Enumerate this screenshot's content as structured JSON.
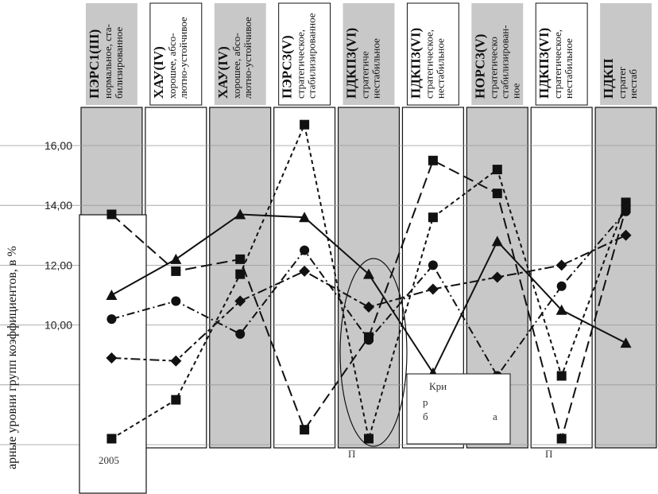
{
  "chart_data": {
    "type": "line",
    "title": "",
    "xlabel": "",
    "ylabel": "арные уровни групп коэффициентов, в %",
    "ylim": [
      6.0,
      17.0
    ],
    "yticks": [
      {
        "value": 16,
        "label": "16,00"
      },
      {
        "value": 14,
        "label": "14,00"
      },
      {
        "value": 12,
        "label": "12,00"
      },
      {
        "value": 10,
        "label": "10,00"
      }
    ],
    "categories": [
      {
        "code": "ПЭРС1(III)",
        "desc": [
          "нормальное, ста-",
          "билизированное"
        ],
        "shaded": true
      },
      {
        "code": "ХАУ(IV)",
        "desc": [
          "хорошее, абсо-",
          "лютно-устойчивое"
        ],
        "shaded": false
      },
      {
        "code": "ХАУ(IV)",
        "desc": [
          "хорошее, абсо-",
          "лютно-устойчивое"
        ],
        "shaded": true
      },
      {
        "code": "ПЭРС3(V)",
        "desc": [
          "стратегическое,",
          "стабилизированное"
        ],
        "shaded": false
      },
      {
        "code": "ПДКП3(VI)",
        "desc": [
          "стратегиче",
          "нестабильное"
        ],
        "shaded": true
      },
      {
        "code": "ПДКП3(VI)",
        "desc": [
          "стратегическое,",
          "нестабильное"
        ],
        "shaded": false
      },
      {
        "code": "НОРС3(V)",
        "desc": [
          "стратегическо",
          "стабилизирован-",
          "ное"
        ],
        "shaded": true
      },
      {
        "code": "ПДКП3(VI)",
        "desc": [
          "стратегическое,",
          "нестабильное"
        ],
        "shaded": false
      },
      {
        "code": "ПДКП",
        "desc": [
          "стратег",
          "нестаб"
        ],
        "shaded": true
      }
    ],
    "x": [
      1,
      2,
      3,
      4,
      5,
      6,
      7,
      8,
      9
    ],
    "series": [
      {
        "marker": "triangle",
        "dash": "solid",
        "values": [
          11.0,
          12.2,
          13.7,
          13.6,
          11.7,
          8.4,
          12.8,
          10.5,
          9.4
        ]
      },
      {
        "marker": "square",
        "dash": "longdash",
        "values": [
          13.7,
          11.8,
          12.2,
          6.5,
          9.6,
          15.5,
          14.4,
          6.2,
          13.9
        ]
      },
      {
        "marker": "square",
        "dash": "shortdash",
        "values": [
          6.2,
          7.5,
          11.7,
          16.7,
          6.2,
          13.6,
          15.2,
          8.3,
          14.1
        ]
      },
      {
        "marker": "circle",
        "dash": "dashdot",
        "values": [
          10.2,
          10.8,
          9.7,
          12.5,
          9.5,
          12.0,
          8.3,
          11.3,
          13.8
        ]
      },
      {
        "marker": "diamond",
        "dash": "longshort",
        "values": [
          8.9,
          8.8,
          10.8,
          11.8,
          10.6,
          11.2,
          11.6,
          12.0,
          13.0
        ]
      }
    ]
  },
  "extras": {
    "callout_lines": [
      "Кри",
      "р",
      "б",
      "а"
    ],
    "bottom_left_text": "2005",
    "bottom_labels": [
      "П",
      "П"
    ]
  }
}
